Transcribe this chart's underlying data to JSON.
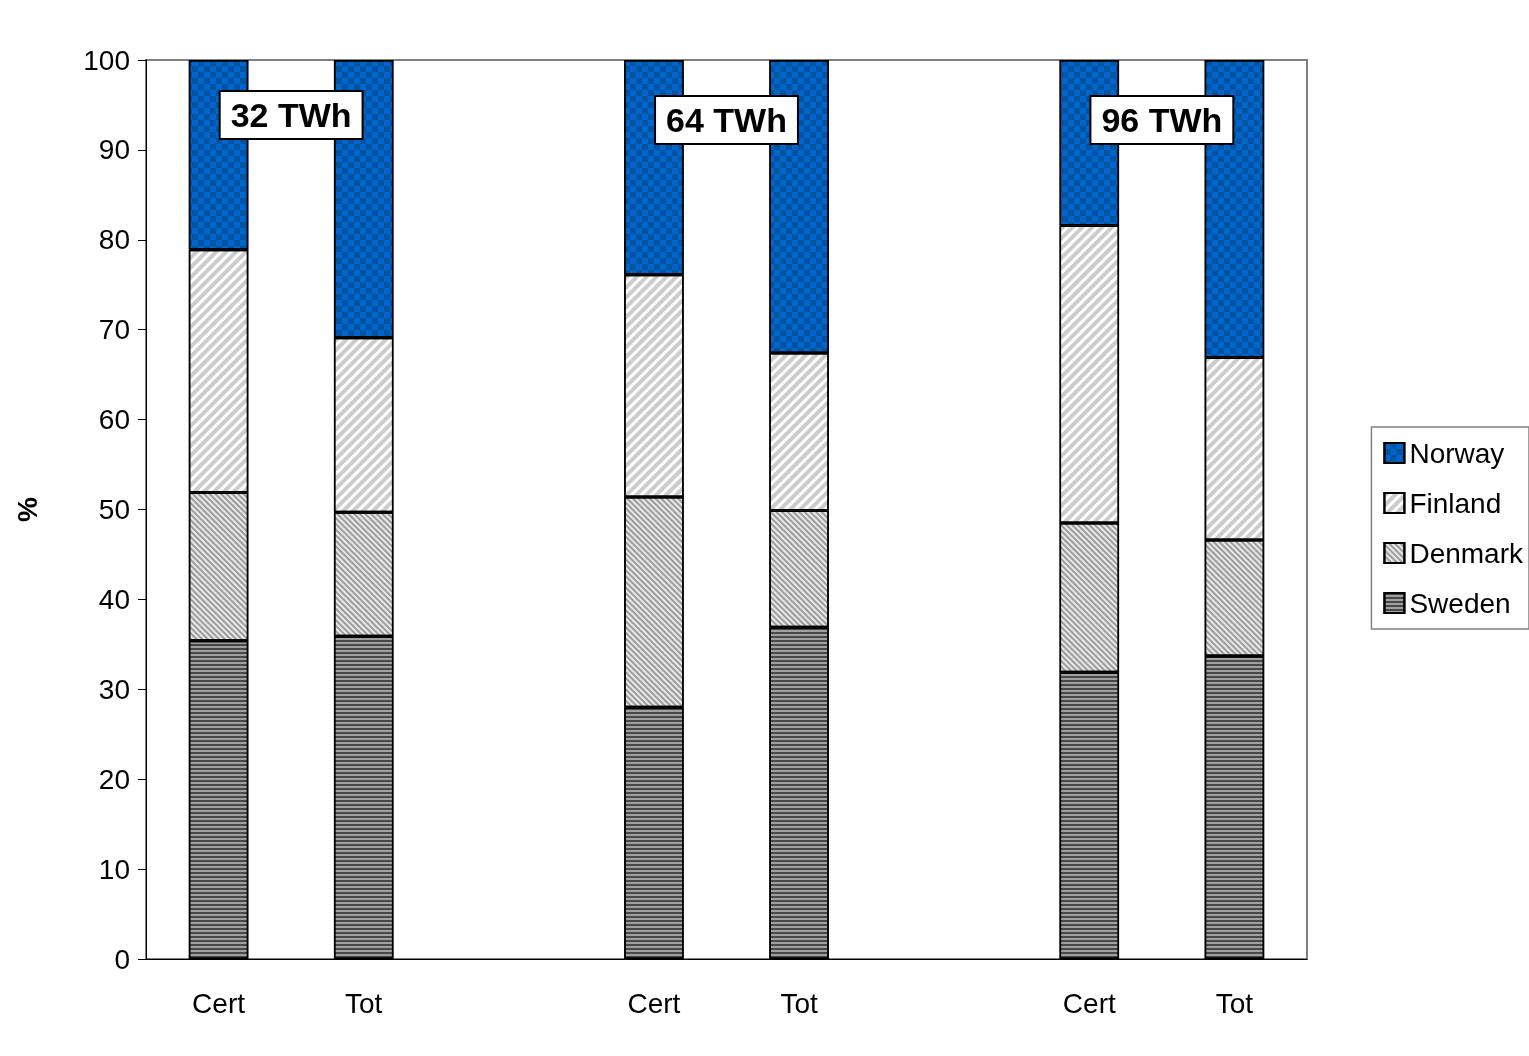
{
  "chart_data": {
    "type": "bar",
    "stacked": true,
    "ylabel": "%",
    "categories": [
      "Cert",
      "Tot",
      null,
      "Cert",
      "Tot",
      null,
      "Cert",
      "Tot"
    ],
    "series": [
      {
        "name": "Sweden",
        "color": "#a0a0a0",
        "values": [
          35.4,
          35.9,
          null,
          28.0,
          36.9,
          null,
          31.9,
          33.7
        ]
      },
      {
        "name": "Denmark",
        "color": "#e8e8e8",
        "values": [
          16.5,
          13.8,
          null,
          23.4,
          13.0,
          null,
          16.6,
          12.9
        ]
      },
      {
        "name": "Finland",
        "color": "#ffffff",
        "values": [
          27.0,
          19.4,
          null,
          24.7,
          17.5,
          null,
          33.1,
          20.3
        ]
      },
      {
        "name": "Norway",
        "color": "#0066cc",
        "values": [
          21.1,
          30.9,
          null,
          23.9,
          32.6,
          null,
          18.4,
          33.1
        ]
      }
    ],
    "ylim": [
      0,
      100
    ],
    "yticks": [
      0,
      10,
      20,
      30,
      40,
      50,
      60,
      70,
      80,
      90,
      100
    ],
    "grid": false,
    "legend": "right",
    "annotations": [
      "32 TWh",
      "64 TWh",
      "96 TWh"
    ]
  }
}
